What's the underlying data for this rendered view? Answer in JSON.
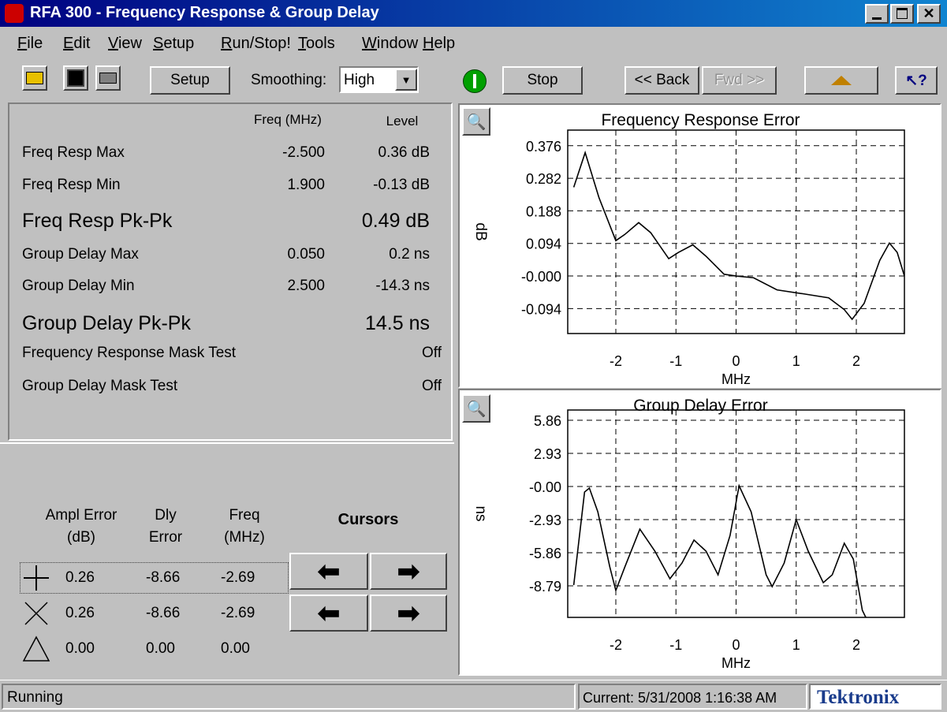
{
  "window": {
    "title": "RFA 300 - Frequency Response & Group Delay"
  },
  "menu": [
    "File",
    "Edit",
    "View",
    "Setup",
    "Run/Stop!",
    "Tools",
    "Window",
    "Help"
  ],
  "toolbar": {
    "setup": "Setup",
    "smoothing_label": "Smoothing:",
    "smoothing": "High",
    "stop": "Stop",
    "back": "<< Back",
    "fwd": "Fwd >>"
  },
  "results": {
    "headers": [
      "Freq (MHz)",
      "Level"
    ],
    "rows": [
      {
        "label": "Freq Resp Max",
        "freq": "-2.500",
        "level": "0.36 dB"
      },
      {
        "label": "Freq Resp Min",
        "freq": "1.900",
        "level": "-0.13 dB"
      },
      {
        "label": "Freq Resp Pk-Pk",
        "level": "0.49 dB",
        "bold": true
      },
      {
        "label": "Group Delay Max",
        "freq": "0.050",
        "level": "0.2 ns"
      },
      {
        "label": "Group Delay Min",
        "freq": "2.500",
        "level": "-14.3 ns"
      },
      {
        "label": "Group Delay Pk-Pk",
        "level": "14.5 ns",
        "bold": true
      },
      {
        "label": "Frequency Response Mask Test",
        "state": "Off"
      },
      {
        "label": "Group Delay Mask Test",
        "state": "Off"
      }
    ]
  },
  "cursors": {
    "headers": [
      [
        "Ampl Error",
        "(dB)"
      ],
      [
        "Dly",
        "Error"
      ],
      [
        "Freq",
        "(MHz)"
      ]
    ],
    "title": "Cursors",
    "rows": [
      [
        "0.26",
        "-8.66",
        "-2.69"
      ],
      [
        "0.26",
        "-8.66",
        "-2.69"
      ],
      [
        "0.00",
        "0.00",
        "0.00"
      ]
    ]
  },
  "status": {
    "state": "Running",
    "time": "Current: 5/31/2008 1:16:38 AM",
    "brand": "Tektronix"
  },
  "chart_data": [
    {
      "type": "line",
      "title": "Frequency Response Error",
      "x_label": "MHz",
      "y_label": "dB",
      "color": "#000000",
      "grid": true,
      "x": [
        -2.7,
        -2.51,
        -2.28,
        -2.0,
        -1.85,
        -1.62,
        -1.42,
        -1.12,
        -0.96,
        -0.72,
        -0.5,
        -0.2,
        0,
        0.29,
        0.68,
        1.14,
        1.54,
        1.8,
        1.93,
        2.13,
        2.39,
        2.55,
        2.68,
        2.8
      ],
      "values": [
        0.256,
        0.356,
        0.226,
        0.102,
        0.12,
        0.154,
        0.125,
        0.05,
        0.068,
        0.09,
        0.057,
        0.005,
        0,
        -0.005,
        -0.04,
        -0.052,
        -0.063,
        -0.097,
        -0.125,
        -0.079,
        0.045,
        0.095,
        0.068,
        0
      ],
      "xlim": [
        -2.8,
        2.8
      ],
      "xticks": [
        -2,
        -1,
        0,
        1,
        2
      ],
      "ylim": [
        -0.166,
        0.421
      ],
      "yticks": [
        0.376,
        0.282,
        0.188,
        0.094,
        {
          "value": 0,
          "label": "-0.000"
        },
        -0.094
      ]
    },
    {
      "type": "line",
      "title": "Group Delay Error",
      "x_label": "MHz",
      "y_label": "ns",
      "color": "#000000",
      "grid": true,
      "x": [
        -2.7,
        -2.52,
        -2.44,
        -2.3,
        -2.1,
        -2.0,
        -1.85,
        -1.6,
        -1.35,
        -1.1,
        -0.9,
        -0.7,
        -0.5,
        -0.3,
        -0.1,
        0.05,
        0.25,
        0.5,
        0.6,
        0.8,
        1.0,
        1.2,
        1.45,
        1.6,
        1.8,
        1.95,
        2.1,
        2.15,
        2.5
      ],
      "values": [
        -8.72,
        -0.49,
        -0.14,
        -2.23,
        -7.12,
        -9.2,
        -7.12,
        -3.77,
        -5.72,
        -8.16,
        -6.77,
        -4.74,
        -5.72,
        -7.81,
        -4.33,
        0.07,
        -2.23,
        -7.81,
        -8.86,
        -6.77,
        -2.93,
        -5.72,
        -8.51,
        -7.81,
        -5.02,
        -6.42,
        -10.95,
        -11.5,
        -14.3
      ],
      "xlim": [
        -2.8,
        2.8
      ],
      "xticks": [
        -2,
        -1,
        0,
        1,
        2
      ],
      "ylim": [
        -11.58,
        6.77
      ],
      "yticks": [
        5.86,
        2.93,
        {
          "value": 0,
          "label": "-0.00"
        },
        -2.93,
        -5.86,
        -8.79
      ]
    }
  ]
}
